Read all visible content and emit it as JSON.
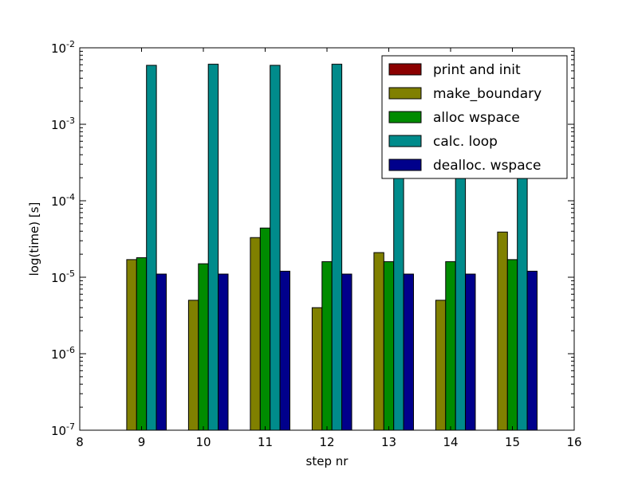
{
  "chart_data": {
    "type": "bar",
    "title": "",
    "xlabel": "step nr",
    "ylabel": "log(time) [s]",
    "yscale": "log",
    "xlim": [
      8,
      16
    ],
    "ylim": [
      1e-07,
      0.01
    ],
    "x": [
      9,
      10,
      11,
      12,
      13,
      14,
      15
    ],
    "x_ticks": [
      "8",
      "9",
      "10",
      "11",
      "12",
      "13",
      "14",
      "15",
      "16"
    ],
    "y_ticks": [
      {
        "base": "10",
        "exp": "-7",
        "value": 1e-07
      },
      {
        "base": "10",
        "exp": "-6",
        "value": 1e-06
      },
      {
        "base": "10",
        "exp": "-5",
        "value": 1e-05
      },
      {
        "base": "10",
        "exp": "-4",
        "value": 0.0001
      },
      {
        "base": "10",
        "exp": "-3",
        "value": 0.001
      },
      {
        "base": "10",
        "exp": "-2",
        "value": 0.01
      }
    ],
    "legend_position": "top-right",
    "grid": false,
    "series": [
      {
        "name": "print and init",
        "color": "#8b0000",
        "values": [
          null,
          null,
          null,
          null,
          null,
          null,
          null
        ]
      },
      {
        "name": "make_boundary",
        "color": "#808000",
        "values": [
          1.7e-05,
          5e-06,
          3.3e-05,
          4e-06,
          2.1e-05,
          5e-06,
          3.9e-05
        ]
      },
      {
        "name": "alloc wspace",
        "color": "#008b00",
        "values": [
          1.8e-05,
          1.5e-05,
          4.4e-05,
          1.6e-05,
          1.6e-05,
          1.6e-05,
          1.7e-05
        ]
      },
      {
        "name": "calc. loop",
        "color": "#008b8b",
        "values": [
          0.0059,
          0.0061,
          0.0059,
          0.0061,
          0.0059,
          0.0059,
          0.0059
        ]
      },
      {
        "name": "dealloc. wspace",
        "color": "#00008b",
        "values": [
          1.1e-05,
          1.1e-05,
          1.2e-05,
          1.1e-05,
          1.1e-05,
          1.1e-05,
          1.2e-05
        ]
      }
    ]
  }
}
